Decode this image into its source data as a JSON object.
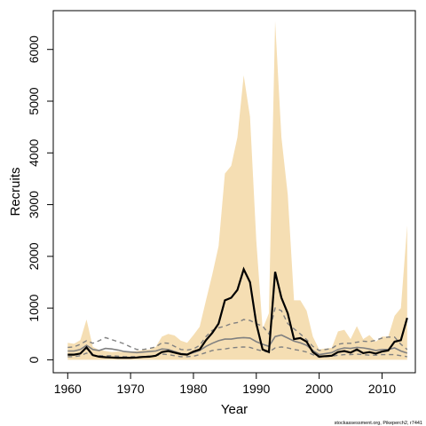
{
  "chart_data": {
    "type": "area",
    "xlabel": "Year",
    "ylabel": "Recruits",
    "xlim": [
      1957.7,
      2015.3
    ],
    "ylim": [
      -250,
      6750
    ],
    "x_ticks": [
      1960,
      1970,
      1980,
      1990,
      2000,
      2010
    ],
    "y_ticks": [
      0,
      1000,
      2000,
      3000,
      4000,
      5000,
      6000
    ],
    "grid": false,
    "credit": "stockassessment.org, Pikeperch2, r7441",
    "colors": {
      "band": "#f5deb3",
      "main": "#000000",
      "median": "#808080",
      "quantile": "#808080"
    },
    "x": [
      1960,
      1961,
      1962,
      1963,
      1964,
      1965,
      1966,
      1967,
      1968,
      1969,
      1970,
      1971,
      1972,
      1973,
      1974,
      1975,
      1976,
      1977,
      1978,
      1979,
      1980,
      1981,
      1982,
      1983,
      1984,
      1985,
      1986,
      1987,
      1988,
      1989,
      1990,
      1991,
      1992,
      1993,
      1994,
      1995,
      1996,
      1997,
      1998,
      1999,
      2000,
      2001,
      2002,
      2003,
      2004,
      2005,
      2006,
      2007,
      2008,
      2009,
      2010,
      2011,
      2012,
      2013,
      2014
    ],
    "series": [
      {
        "role": "upper_bound",
        "values": [
          330,
          310,
          380,
          780,
          250,
          190,
          170,
          150,
          160,
          150,
          160,
          170,
          190,
          200,
          250,
          450,
          500,
          470,
          370,
          330,
          480,
          640,
          1150,
          1650,
          2200,
          3600,
          3750,
          4300,
          5500,
          4700,
          2300,
          600,
          900,
          6550,
          4300,
          3200,
          1150,
          1150,
          950,
          450,
          200,
          220,
          230,
          550,
          580,
          400,
          650,
          400,
          480,
          350,
          450,
          450,
          850,
          1000,
          2600
        ]
      },
      {
        "role": "lower_bound",
        "values": [
          0,
          0,
          0,
          0,
          0,
          0,
          0,
          0,
          0,
          0,
          0,
          0,
          0,
          0,
          0,
          0,
          0,
          0,
          0,
          0,
          0,
          0,
          0,
          0,
          0,
          0,
          0,
          0,
          0,
          0,
          0,
          0,
          0,
          0,
          0,
          0,
          0,
          0,
          0,
          0,
          0,
          0,
          0,
          0,
          0,
          0,
          0,
          0,
          0,
          0,
          0,
          0,
          0,
          0,
          0
        ]
      },
      {
        "role": "estimate",
        "values": [
          100,
          100,
          120,
          240,
          90,
          60,
          50,
          45,
          40,
          40,
          40,
          45,
          55,
          60,
          80,
          150,
          170,
          140,
          110,
          100,
          160,
          200,
          380,
          520,
          700,
          1150,
          1200,
          1350,
          1750,
          1500,
          700,
          200,
          150,
          1700,
          1200,
          900,
          400,
          420,
          350,
          150,
          60,
          70,
          80,
          150,
          170,
          140,
          200,
          130,
          150,
          120,
          160,
          180,
          350,
          380,
          810
        ]
      },
      {
        "role": "median",
        "values": [
          170,
          170,
          200,
          280,
          200,
          180,
          220,
          210,
          190,
          160,
          150,
          140,
          150,
          160,
          170,
          210,
          200,
          160,
          120,
          110,
          140,
          180,
          260,
          320,
          370,
          400,
          400,
          420,
          430,
          420,
          350,
          300,
          260,
          450,
          480,
          420,
          360,
          330,
          280,
          180,
          100,
          120,
          140,
          200,
          230,
          220,
          240,
          230,
          210,
          180,
          200,
          200,
          230,
          170,
          130
        ]
      },
      {
        "role": "quantile_upper",
        "values": [
          240,
          250,
          300,
          370,
          320,
          370,
          430,
          390,
          350,
          310,
          250,
          200,
          200,
          220,
          250,
          330,
          320,
          260,
          200,
          190,
          210,
          280,
          450,
          570,
          620,
          650,
          700,
          720,
          780,
          760,
          700,
          650,
          500,
          1000,
          950,
          700,
          600,
          500,
          390,
          260,
          180,
          200,
          220,
          300,
          320,
          320,
          340,
          360,
          350,
          380,
          420,
          440,
          440,
          300,
          200
        ]
      },
      {
        "role": "quantile_lower",
        "values": [
          60,
          60,
          80,
          130,
          90,
          80,
          80,
          80,
          70,
          60,
          60,
          60,
          60,
          70,
          80,
          110,
          100,
          80,
          60,
          60,
          70,
          100,
          140,
          180,
          200,
          210,
          230,
          240,
          250,
          240,
          200,
          170,
          150,
          230,
          250,
          230,
          200,
          180,
          150,
          100,
          50,
          60,
          70,
          90,
          100,
          100,
          110,
          100,
          90,
          90,
          100,
          100,
          100,
          80,
          60
        ]
      }
    ]
  }
}
